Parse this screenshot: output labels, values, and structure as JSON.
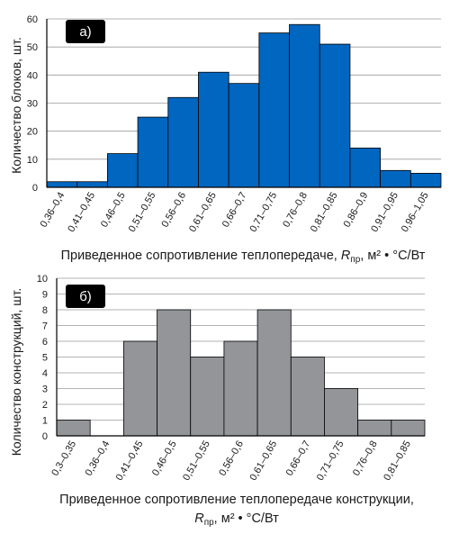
{
  "chart_data": [
    {
      "type": "bar",
      "panel_label": "а)",
      "categories": [
        "0,36–0,4",
        "0,41–0,45",
        "0,46–0,5",
        "0,51–0,55",
        "0,56–0,6",
        "0,61–0,65",
        "0,66–0,7",
        "0,71–0,75",
        "0,76–0,8",
        "0,81–0,85",
        "0,86–0,9",
        "0,91–0,95",
        "0,96–1,05"
      ],
      "values": [
        2,
        2,
        12,
        25,
        32,
        41,
        37,
        55,
        58,
        51,
        14,
        6,
        5
      ],
      "ylabel": "Количество блоков, шт.",
      "xlabel_prefix": "Приведенное сопротивление теплопередаче, ",
      "xlabel_symbol": "R",
      "xlabel_sub": "пр",
      "xlabel_unit": ", м² • °С/Вт",
      "ylim": [
        0,
        60
      ],
      "yticks": [
        "0",
        "10",
        "20",
        "30",
        "40",
        "50",
        "60"
      ],
      "color": "#0066c0",
      "grid": true
    },
    {
      "type": "bar",
      "panel_label": "б)",
      "categories": [
        "0,3–0,35",
        "0,36–0,4",
        "0,41–0,45",
        "0,46–0,5",
        "0,51–0,55",
        "0,56–0,6",
        "0,61–0,65",
        "0,66–0,7",
        "0,71–0,75",
        "0,76–0,8",
        "0,81–0,85"
      ],
      "values": [
        1,
        0,
        6,
        8,
        5,
        6,
        8,
        5,
        3,
        1,
        1
      ],
      "ylabel": "Количество конструкций, шт.",
      "xlabel_line1": "Приведенное сопротивление теплопередаче конструкции,",
      "xlabel_symbol": "R",
      "xlabel_sub": "пр",
      "xlabel_unit": ", м² • °С/Вт",
      "ylim": [
        0,
        10
      ],
      "yticks": [
        "0",
        "1",
        "2",
        "3",
        "4",
        "5",
        "6",
        "7",
        "8",
        "9",
        "10"
      ],
      "color": "#939598",
      "grid": true
    }
  ]
}
